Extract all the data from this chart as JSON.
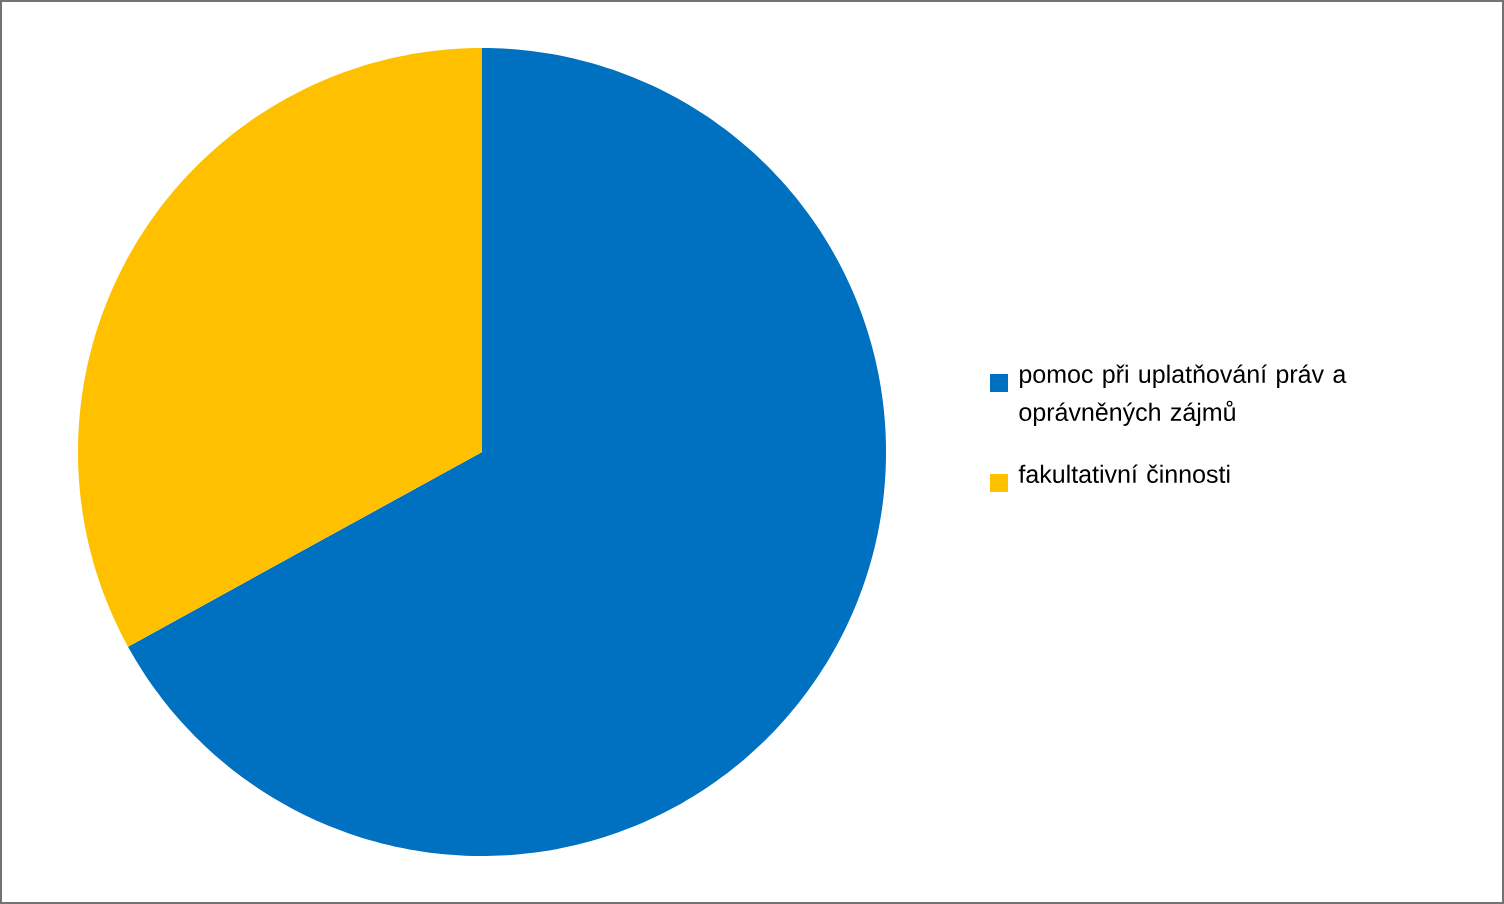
{
  "chart_data": {
    "type": "pie",
    "categories": [
      "pomoc při uplatňování práv a oprávněných zájmů",
      "fakultativní činnosti"
    ],
    "values": [
      67,
      33
    ],
    "colors": [
      "#0070c0",
      "#ffc000"
    ],
    "legend": "right"
  }
}
